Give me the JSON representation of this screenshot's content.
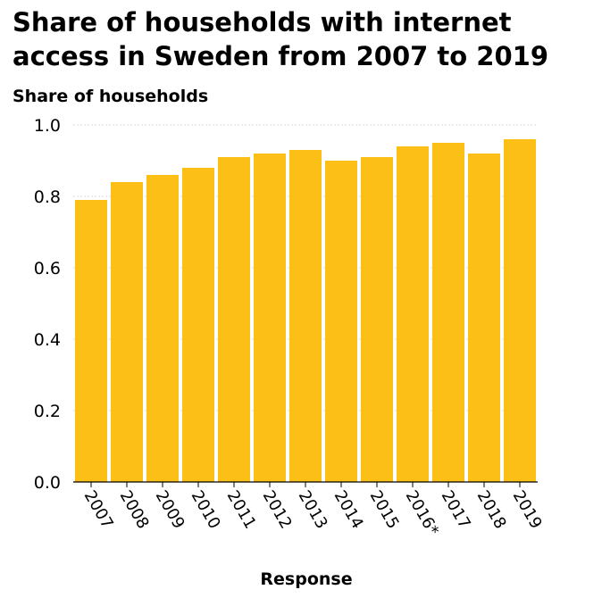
{
  "chart_data": {
    "type": "bar",
    "title": "Share of households with internet access in Sweden from 2007 to 2019",
    "xlabel": "Response",
    "ylabel": "Share of households",
    "categories": [
      "2007",
      "2008",
      "2009",
      "2010",
      "2011",
      "2012",
      "2013",
      "2014",
      "2015",
      "2016*",
      "2017",
      "2018",
      "2019"
    ],
    "values": [
      0.79,
      0.84,
      0.86,
      0.88,
      0.91,
      0.92,
      0.93,
      0.9,
      0.91,
      0.94,
      0.95,
      0.92,
      0.96
    ],
    "ylim": [
      0,
      1.0
    ],
    "yticks": [
      "0.0",
      "0.2",
      "0.4",
      "0.6",
      "0.8",
      "1.0"
    ],
    "bar_color": "#FBBF15",
    "grid": true
  }
}
